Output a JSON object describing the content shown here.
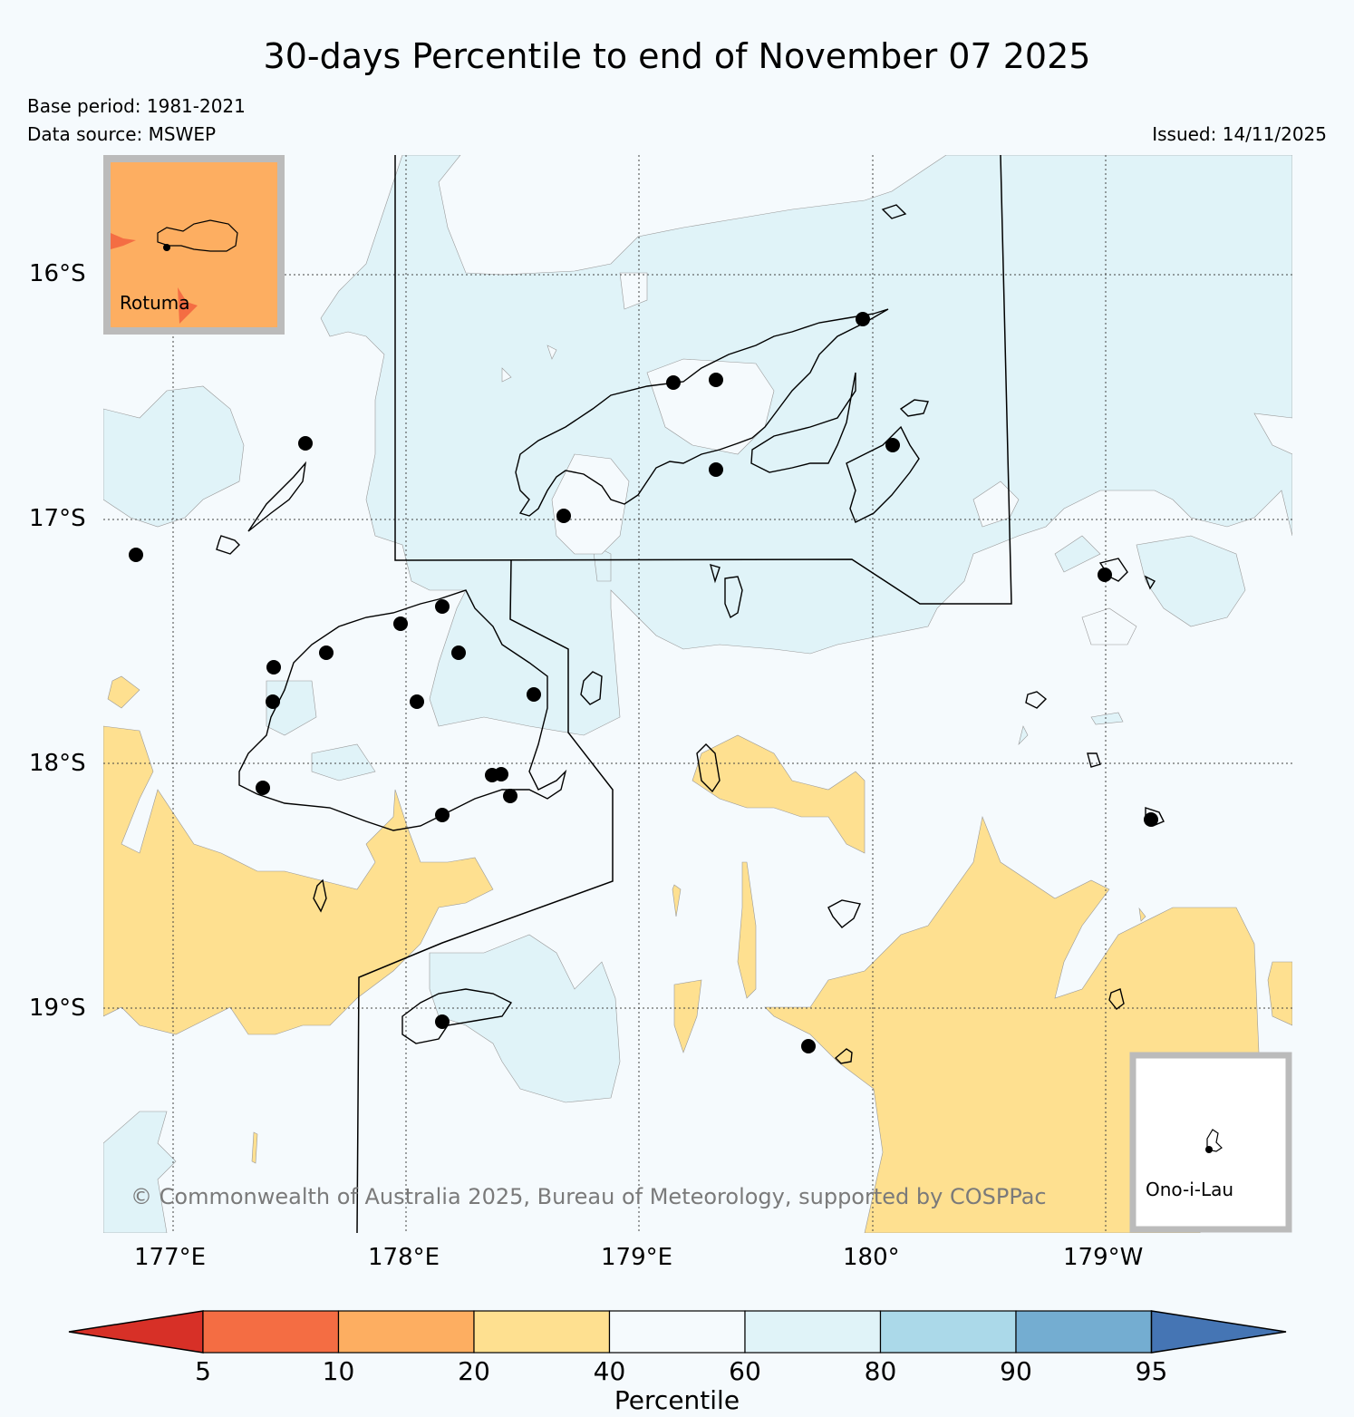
{
  "title": "30-days Percentile to end of November 07 2025",
  "base_period": "Base period: 1981-2021",
  "data_source": "Data source: MSWEP",
  "issued": "Issued: 14/11/2025",
  "copyright": "© Commonwealth of Australia 2025, Bureau of Meteorology, supported by COSPPac",
  "lat_labels": [
    "16°S",
    "17°S",
    "18°S",
    "19°S"
  ],
  "lon_labels": [
    "177°E",
    "178°E",
    "179°E",
    "180°",
    "179°W"
  ],
  "insets": {
    "rotuma": "Rotuma",
    "ono": "Ono-i-Lau"
  },
  "colorbar": {
    "label": "Percentile",
    "ticks": [
      "5",
      "10",
      "20",
      "40",
      "60",
      "80",
      "90",
      "95"
    ],
    "colors": [
      "#d73027",
      "#f46d43",
      "#fdae61",
      "#fee090",
      "#f5fafd",
      "#e0f3f8",
      "#abd9e9",
      "#74add1",
      "#4575b4"
    ]
  },
  "legend_colors": {
    "below_20_40": "#fee090",
    "normal_40_60": "#f5fafd",
    "above_60_80": "#e0f3f8",
    "rotuma_fill": "#fdae61"
  }
}
